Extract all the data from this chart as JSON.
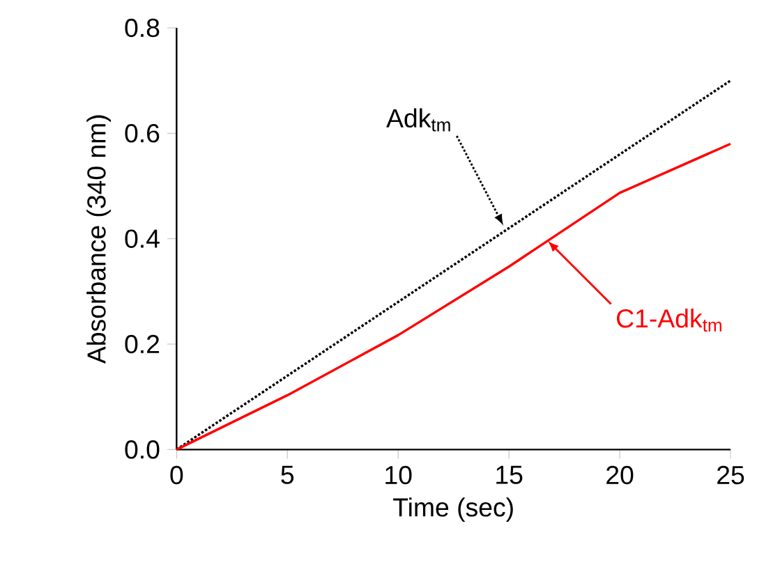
{
  "chart_data": {
    "type": "line",
    "xlabel": "Time (sec)",
    "ylabel": "Absorbance (340 nm)",
    "x": [
      0,
      5,
      10,
      15,
      20,
      25
    ],
    "series": [
      {
        "name": "Adk$_{tm}$",
        "color": "#000000",
        "line_style": "dotted",
        "values": [
          0,
          0.14,
          0.28,
          0.42,
          0.56,
          0.7
        ]
      },
      {
        "name": "C1-Adk$_{tm}$",
        "color": "#ff0000",
        "line_style": "solid",
        "values": [
          0,
          0.103,
          0.217,
          0.347,
          0.487,
          0.58
        ]
      }
    ],
    "xlim": [
      0,
      25
    ],
    "ylim": [
      0,
      0.8
    ],
    "xticks": [
      0,
      5,
      10,
      15,
      20,
      25
    ],
    "yticks": [
      {
        "value": 0,
        "label": "0.0"
      },
      {
        "value": 0.2,
        "label": "0.2"
      },
      {
        "value": 0.4,
        "label": "0.4"
      },
      {
        "value": 0.6,
        "label": "0.6"
      },
      {
        "value": 0.8,
        "label": "0.8"
      }
    ],
    "grid": false,
    "marker": "none"
  }
}
